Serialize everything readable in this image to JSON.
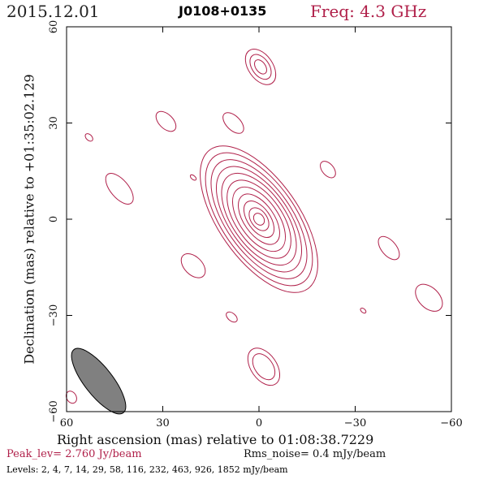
{
  "header": {
    "date": "2015.12.01",
    "source": "J0108+0135",
    "frequency": "Freq: 4.3 GHz"
  },
  "footer": {
    "peak": "Peak_lev=  2.760 Jy/beam",
    "rms": "Rms_noise=  0.4 mJy/beam",
    "levels": "Levels:   2,    4,    7,   14,   29,   58,  116,  232,  463,  926,  1852  mJy/beam"
  },
  "colors": {
    "contour": "#b0204a",
    "beam": "#808080",
    "frame": "#000000"
  },
  "chart_data": {
    "type": "contour",
    "title": "J0108+0135",
    "xlabel": "Right ascension (mas) relative to 01:08:38.7229",
    "ylabel": "Declination (mas) relative to +01:35:02.129",
    "xlim": [
      60,
      -60
    ],
    "ylim": [
      -60,
      60
    ],
    "x_ticks": [
      60,
      30,
      0,
      -30,
      -60
    ],
    "y_ticks": [
      60,
      30,
      0,
      -30,
      -60
    ],
    "x_tick_labels": [
      "60",
      "30",
      "0",
      "−30",
      "−60"
    ],
    "y_tick_labels": [
      "60",
      "30",
      "0",
      "−30",
      "−60"
    ],
    "peak_Jy_per_beam": 2.76,
    "rms_noise_mJy_per_beam": 0.4,
    "contour_levels_mJy_per_beam": [
      2,
      4,
      7,
      14,
      29,
      58,
      116,
      232,
      463,
      926,
      1852
    ],
    "core": {
      "x": 0,
      "y": 0,
      "angle_deg": -55,
      "rings": [
        [
          2,
          1.5
        ],
        [
          4,
          2.5
        ],
        [
          6.5,
          3.5
        ],
        [
          9,
          4.7
        ],
        [
          11.5,
          6
        ],
        [
          14,
          7.2
        ],
        [
          16.5,
          8.3
        ],
        [
          19,
          9.3
        ],
        [
          21.5,
          10.3
        ],
        [
          24,
          11.5
        ],
        [
          26.5,
          12.5
        ]
      ]
    },
    "components": [
      {
        "x": -0.5,
        "y": 47.5,
        "a": 6.2,
        "b": 3.8,
        "angle_deg": -55,
        "rings": 3
      },
      {
        "x": 8,
        "y": 30,
        "a": 4.0,
        "b": 2.2,
        "angle_deg": -45,
        "rings": 1
      },
      {
        "x": 53,
        "y": 25.5,
        "a": 1.4,
        "b": 0.9,
        "angle_deg": -45,
        "rings": 1
      },
      {
        "x": 29,
        "y": 30.5,
        "a": 3.8,
        "b": 2.2,
        "angle_deg": -45,
        "rings": 1
      },
      {
        "x": 20.5,
        "y": 13,
        "a": 1.1,
        "b": 0.6,
        "angle_deg": -40,
        "rings": 1
      },
      {
        "x": 43.5,
        "y": 9.5,
        "a": 5.8,
        "b": 2.8,
        "angle_deg": -50,
        "rings": 1
      },
      {
        "x": -21.5,
        "y": 15.5,
        "a": 3.0,
        "b": 1.8,
        "angle_deg": -50,
        "rings": 1
      },
      {
        "x": 20.5,
        "y": -14.5,
        "a": 4.5,
        "b": 2.8,
        "angle_deg": -45,
        "rings": 1
      },
      {
        "x": -40.5,
        "y": -9,
        "a": 4.3,
        "b": 2.3,
        "angle_deg": -50,
        "rings": 1
      },
      {
        "x": -53,
        "y": -24.5,
        "a": 5.0,
        "b": 3.2,
        "angle_deg": -45,
        "rings": 1
      },
      {
        "x": 8.5,
        "y": -30.5,
        "a": 2.0,
        "b": 1.2,
        "angle_deg": -40,
        "rings": 1
      },
      {
        "x": -32.5,
        "y": -28.5,
        "a": 1.0,
        "b": 0.6,
        "angle_deg": -40,
        "rings": 1
      },
      {
        "x": -1.5,
        "y": -46,
        "a": 6.5,
        "b": 4.0,
        "angle_deg": -55,
        "rings": 2
      },
      {
        "x": 58.5,
        "y": -55.5,
        "a": 2.0,
        "b": 1.5,
        "angle_deg": -60,
        "rings": 1
      }
    ],
    "beam": {
      "x": 50,
      "y": -50.5,
      "major": 12.5,
      "minor": 4.4,
      "angle_deg": -52
    }
  }
}
